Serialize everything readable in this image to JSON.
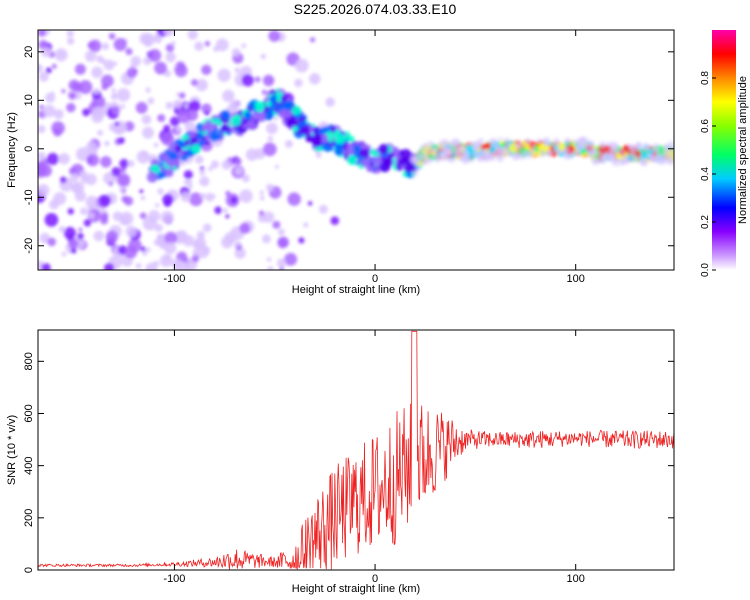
{
  "title": "S225.2026.074.03.33.E10",
  "chart_data": [
    {
      "type": "heatmap",
      "xlabel": "Height of straight line (km)",
      "ylabel": "Frequency (Hz)",
      "xlim": [
        -168,
        149
      ],
      "ylim": [
        -25,
        24.5
      ],
      "xticks": [
        -100,
        0,
        100
      ],
      "yticks": [
        -20,
        -10,
        0,
        10,
        20
      ],
      "ridge": {
        "x": [
          -110,
          -100,
          -95,
          -85,
          -75,
          -65,
          -55,
          -48,
          -42,
          -35,
          -28,
          -20,
          -12,
          -5,
          0,
          5,
          12,
          18,
          25,
          35,
          50,
          60,
          75,
          85,
          95,
          105,
          110,
          120,
          135,
          148
        ],
        "y": [
          -5,
          -2,
          0,
          3,
          5,
          6,
          8,
          10,
          7,
          4,
          2,
          2,
          0,
          -2,
          -2,
          -2,
          -2,
          -4,
          -1,
          -0.5,
          -0.5,
          0,
          0,
          0,
          0,
          0,
          -1,
          -1,
          -1,
          -1
        ]
      },
      "noise_region_x": [
        -168,
        -45
      ],
      "colorbar": {
        "label": "Normalized spectral amplitude",
        "ticks": [
          0.0,
          0.2,
          0.4,
          0.6,
          0.8
        ],
        "colors": [
          "#ffffff",
          "#8800ff",
          "#0000ff",
          "#00ffff",
          "#00ff00",
          "#ffff00",
          "#ff8800",
          "#ff0000",
          "#ff00aa"
        ]
      }
    },
    {
      "type": "line",
      "xlabel": "Height of straight line (km)",
      "ylabel": "SNR (10 * v/v)",
      "xlim": [
        -168,
        149
      ],
      "ylim": [
        0,
        920
      ],
      "xticks": [
        -100,
        0,
        100
      ],
      "yticks": [
        0,
        200,
        400,
        600,
        800
      ],
      "color": "#ee2222",
      "envelope": {
        "x": [
          -168,
          -120,
          -100,
          -80,
          -70,
          -60,
          -50,
          -40,
          -30,
          -20,
          -10,
          0,
          10,
          20,
          30,
          40,
          45,
          60,
          80,
          100,
          120,
          149
        ],
        "base": [
          18,
          18,
          22,
          30,
          40,
          35,
          30,
          40,
          120,
          200,
          260,
          300,
          350,
          420,
          460,
          490,
          500,
          500,
          500,
          505,
          500,
          500
        ],
        "spread": [
          10,
          10,
          15,
          40,
          100,
          60,
          40,
          140,
          340,
          400,
          420,
          460,
          520,
          480,
          350,
          180,
          80,
          60,
          70,
          60,
          70,
          70
        ]
      }
    }
  ]
}
